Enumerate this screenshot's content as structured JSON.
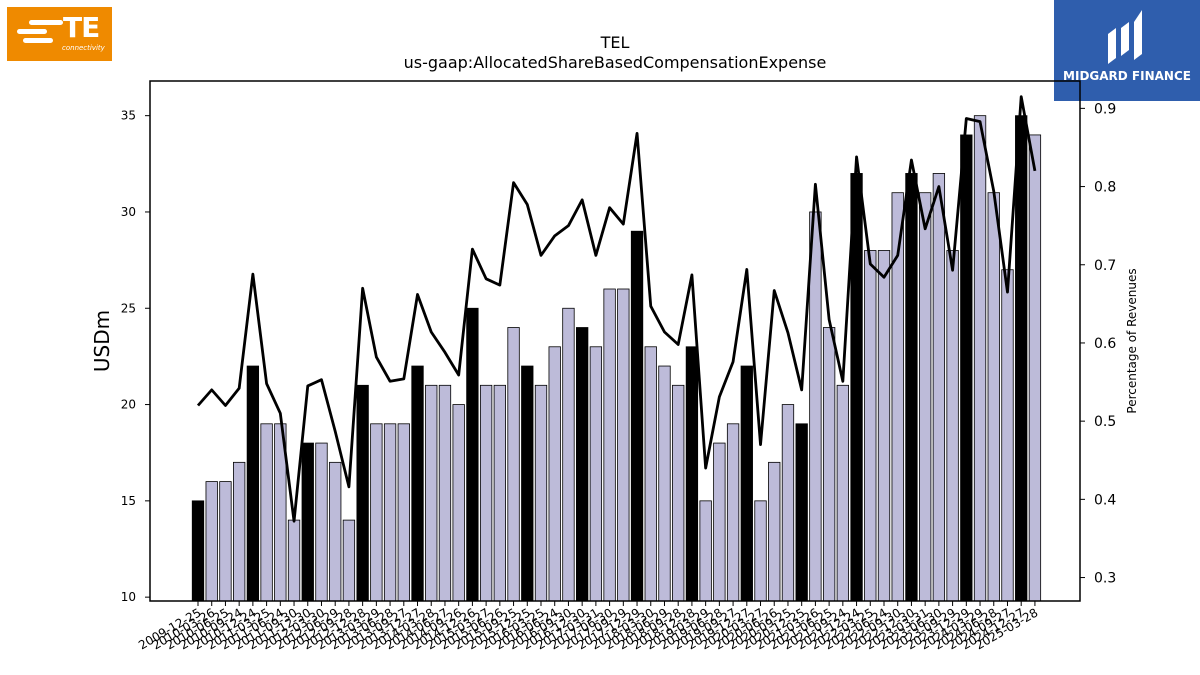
{
  "logos": {
    "left": {
      "text": "TE",
      "subtext": "connectivity"
    },
    "right": {
      "text": "MIDGARD FINANCE"
    }
  },
  "chart_data": {
    "type": "bar",
    "title": "TEL",
    "subtitle": "us-gaap:AllocatedShareBasedCompensationExpense",
    "ylabel": "USDm",
    "y2label": "Percentage of Revenues",
    "ylim": [
      9.8,
      36.8
    ],
    "y2lim": [
      0.27,
      0.935
    ],
    "yticks": [
      10,
      15,
      20,
      25,
      30,
      35
    ],
    "y2ticks": [
      0.3,
      0.4,
      0.5,
      0.6,
      0.7,
      0.8,
      0.9
    ],
    "colors": {
      "bar": "#bdbbd9",
      "bar_highlight": "#000000",
      "line": "#000000"
    },
    "categories": [
      "2009-12-25",
      "2010-03-26",
      "2010-06-25",
      "2010-09-24",
      "2010-12-24",
      "2011-03-25",
      "2011-06-24",
      "2011-09-30",
      "2011-12-30",
      "2012-03-30",
      "2012-06-29",
      "2012-09-28",
      "2012-12-28",
      "2013-03-29",
      "2013-06-28",
      "2013-09-27",
      "2013-12-27",
      "2014-03-28",
      "2014-06-27",
      "2014-09-26",
      "2014-12-26",
      "2015-03-27",
      "2015-06-26",
      "2015-09-25",
      "2015-12-25",
      "2016-03-25",
      "2016-06-24",
      "2016-09-30",
      "2016-12-30",
      "2017-03-31",
      "2017-06-30",
      "2017-09-29",
      "2017-12-29",
      "2018-03-30",
      "2018-06-29",
      "2018-09-28",
      "2018-12-28",
      "2019-03-29",
      "2019-06-28",
      "2019-09-27",
      "2019-12-27",
      "2020-03-27",
      "2020-06-26",
      "2020-09-25",
      "2020-12-25",
      "2021-03-26",
      "2021-06-25",
      "2021-09-24",
      "2021-12-24",
      "2022-03-25",
      "2022-06-24",
      "2022-09-30",
      "2022-12-30",
      "2023-03-31",
      "2023-06-30",
      "2023-09-29",
      "2023-12-29",
      "2024-03-29",
      "2024-06-28",
      "2024-09-27",
      "2024-12-27",
      "2025-03-28"
    ],
    "visible_tick_labels": [
      "2009-12-25",
      "2010-03-26",
      "2010-06-25",
      "2010-09-24",
      "2010-12-24",
      "2011-03-25",
      "2011-06-24",
      "2011-09-30",
      "2011-12-30",
      "2012-03-30",
      "2012-06-29",
      "2012-09-28",
      "2012-12-28",
      "2013-03-29",
      "2013-06-28",
      "2013-09-27",
      "2013-12-27",
      "2014-03-28",
      "2014-06-27",
      "2014-09-26",
      "2014-12-26",
      "2015-03-27",
      "2015-06-26",
      "2015-09-25",
      "2015-12-25",
      "2016-03-25",
      "2016-06-24",
      "2016-09-30",
      "2016-12-30",
      "2017-03-31",
      "2017-06-30",
      "2017-09-29",
      "2017-12-29",
      "2018-03-30",
      "2018-06-29",
      "2018-09-28",
      "2018-12-28",
      "2019-03-29",
      "2019-06-28",
      "2019-09-27",
      "2019-12-27",
      "2020-03-27",
      "2020-06-26",
      "2020-09-25",
      "2020-12-25",
      "2021-03-26",
      "2021-06-25",
      "2021-09-24",
      "2021-12-24",
      "2022-03-25",
      "2022-06-24",
      "2022-09-30",
      "2022-12-30",
      "2023-03-31",
      "2023-06-30",
      "2023-09-29",
      "2023-12-29",
      "2024-03-29",
      "2024-06-28",
      "2024-09-27",
      "2024-12-27",
      "2025-03-28"
    ],
    "series": [
      {
        "type": "bar",
        "values": [
          15,
          16,
          16,
          17,
          22,
          19,
          19,
          14,
          18,
          18,
          17,
          14,
          21,
          19,
          19,
          19,
          22,
          21,
          21,
          20,
          25,
          21,
          21,
          24,
          22,
          21,
          23,
          25,
          24,
          23,
          26,
          26,
          29,
          23,
          22,
          21,
          23,
          15,
          18,
          19,
          22,
          15,
          17,
          20,
          19,
          30,
          24,
          21,
          32,
          28,
          28,
          31,
          32,
          31,
          32,
          28,
          34,
          35,
          31,
          27,
          35,
          34
        ],
        "highlight": [
          1,
          0,
          0,
          0,
          1,
          0,
          0,
          0,
          1,
          0,
          0,
          0,
          1,
          0,
          0,
          0,
          1,
          0,
          0,
          0,
          1,
          0,
          0,
          0,
          1,
          0,
          0,
          0,
          1,
          0,
          0,
          0,
          1,
          0,
          0,
          0,
          1,
          0,
          0,
          0,
          1,
          0,
          0,
          0,
          1,
          0,
          0,
          0,
          1,
          0,
          0,
          0,
          1,
          0,
          0,
          0,
          1,
          0,
          0,
          0,
          1,
          0
        ]
      },
      {
        "type": "line",
        "axis": "secondary",
        "values": [
          0.52,
          0.54,
          0.52,
          0.542,
          0.688,
          0.548,
          0.51,
          0.372,
          0.545,
          0.553,
          0.487,
          0.416,
          0.67,
          0.582,
          0.551,
          0.554,
          0.662,
          0.614,
          0.588,
          0.559,
          0.72,
          0.682,
          0.674,
          0.805,
          0.777,
          0.712,
          0.737,
          0.75,
          0.783,
          0.712,
          0.773,
          0.752,
          0.868,
          0.647,
          0.614,
          0.598,
          0.687,
          0.44,
          0.531,
          0.576,
          0.694,
          0.47,
          0.667,
          0.613,
          0.54,
          0.803,
          0.63,
          0.551,
          0.838,
          0.701,
          0.684,
          0.712,
          0.834,
          0.746,
          0.8,
          0.693,
          0.887,
          0.883,
          0.794,
          0.665,
          0.915,
          0.82
        ]
      }
    ]
  }
}
